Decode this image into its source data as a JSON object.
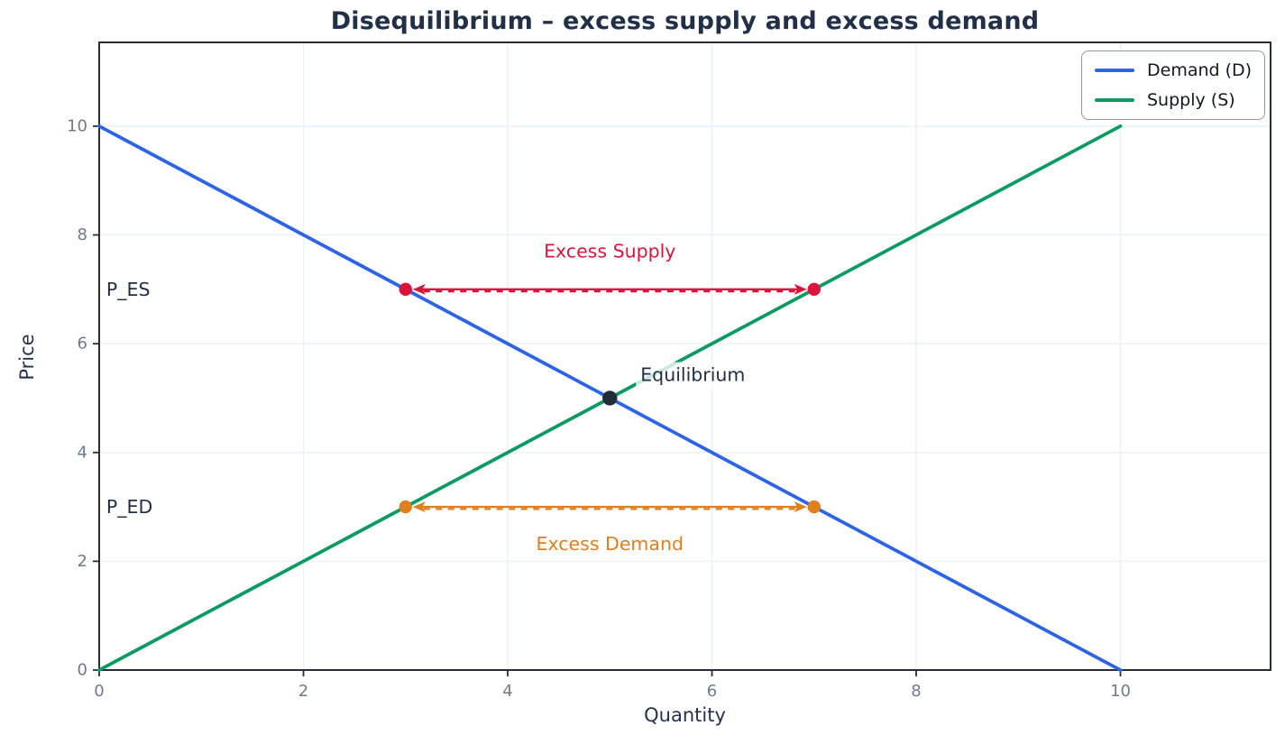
{
  "chart_data": {
    "type": "line",
    "title": "Disequilibrium – excess supply and excess demand",
    "xlabel": "Quantity",
    "ylabel": "Price",
    "xlim": [
      0,
      11.47
    ],
    "ylim": [
      0,
      11.54
    ],
    "xticks": [
      0,
      2,
      4,
      6,
      8,
      10
    ],
    "yticks": [
      0,
      2,
      4,
      6,
      8,
      10
    ],
    "grid": true,
    "legend_position": "upper right",
    "series": [
      {
        "id": "demand-line",
        "name": "Demand (D)",
        "color": "#2d64e5",
        "points": [
          [
            0,
            10
          ],
          [
            10,
            0
          ]
        ]
      },
      {
        "id": "supply-line",
        "name": "Supply (S)",
        "color": "#0b9b62",
        "points": [
          [
            0,
            0
          ],
          [
            10,
            10
          ]
        ]
      }
    ],
    "markers": [
      {
        "name": "equilibrium-point",
        "x": 5,
        "y": 5,
        "color": "#222b38",
        "r": 8.2
      },
      {
        "name": "excess-supply-left-point",
        "x": 3,
        "y": 7,
        "color": "#dc143c",
        "r": 7.2
      },
      {
        "name": "excess-supply-right-point",
        "x": 7,
        "y": 7,
        "color": "#dc143c",
        "r": 7.2
      },
      {
        "name": "excess-demand-left-point",
        "x": 3,
        "y": 3,
        "color": "#df7f1e",
        "r": 7.2
      },
      {
        "name": "excess-demand-right-point",
        "x": 7,
        "y": 3,
        "color": "#df7f1e",
        "r": 7.2
      }
    ],
    "arrows": [
      {
        "name": "excess-supply-arrow",
        "x1": 3,
        "x2": 7,
        "y": 7,
        "color": "#dc143c",
        "style": "double-headed-dashed"
      },
      {
        "name": "excess-demand-arrow",
        "x1": 3,
        "x2": 7,
        "y": 3,
        "color": "#df7f1e",
        "style": "double-headed-dashed"
      }
    ],
    "annotations": [
      {
        "name": "excess-supply-label",
        "text": "Excess Supply",
        "x": 5,
        "y": 7.7,
        "color": "#dc143c",
        "anchor": "middle",
        "bg": false
      },
      {
        "name": "excess-demand-label",
        "text": "Excess Demand",
        "x": 5,
        "y": 2.32,
        "color": "#df7f1e",
        "anchor": "middle",
        "bg": false
      },
      {
        "name": "equilibrium-label",
        "text": "Equilibrium",
        "x": 5.3,
        "y": 5.43,
        "color": "#233044",
        "anchor": "start",
        "bg": true
      },
      {
        "name": "price-excess-supply-label",
        "text": "P_ES",
        "x": 0.07,
        "y": 7,
        "color": "#233044",
        "anchor": "start",
        "bg": false
      },
      {
        "name": "price-excess-demand-label",
        "text": "P_ED",
        "x": 0.07,
        "y": 3,
        "color": "#233044",
        "anchor": "start",
        "bg": false
      }
    ],
    "colors": {
      "background": "#ffffff",
      "grid": "#ecf2fa",
      "spine": "#2a2e33",
      "tick_label": "#6e7b8e",
      "axis_label": "#25324a",
      "title": "#223047",
      "legend_border": "#9199a4",
      "legend_text": "#15181c"
    }
  }
}
